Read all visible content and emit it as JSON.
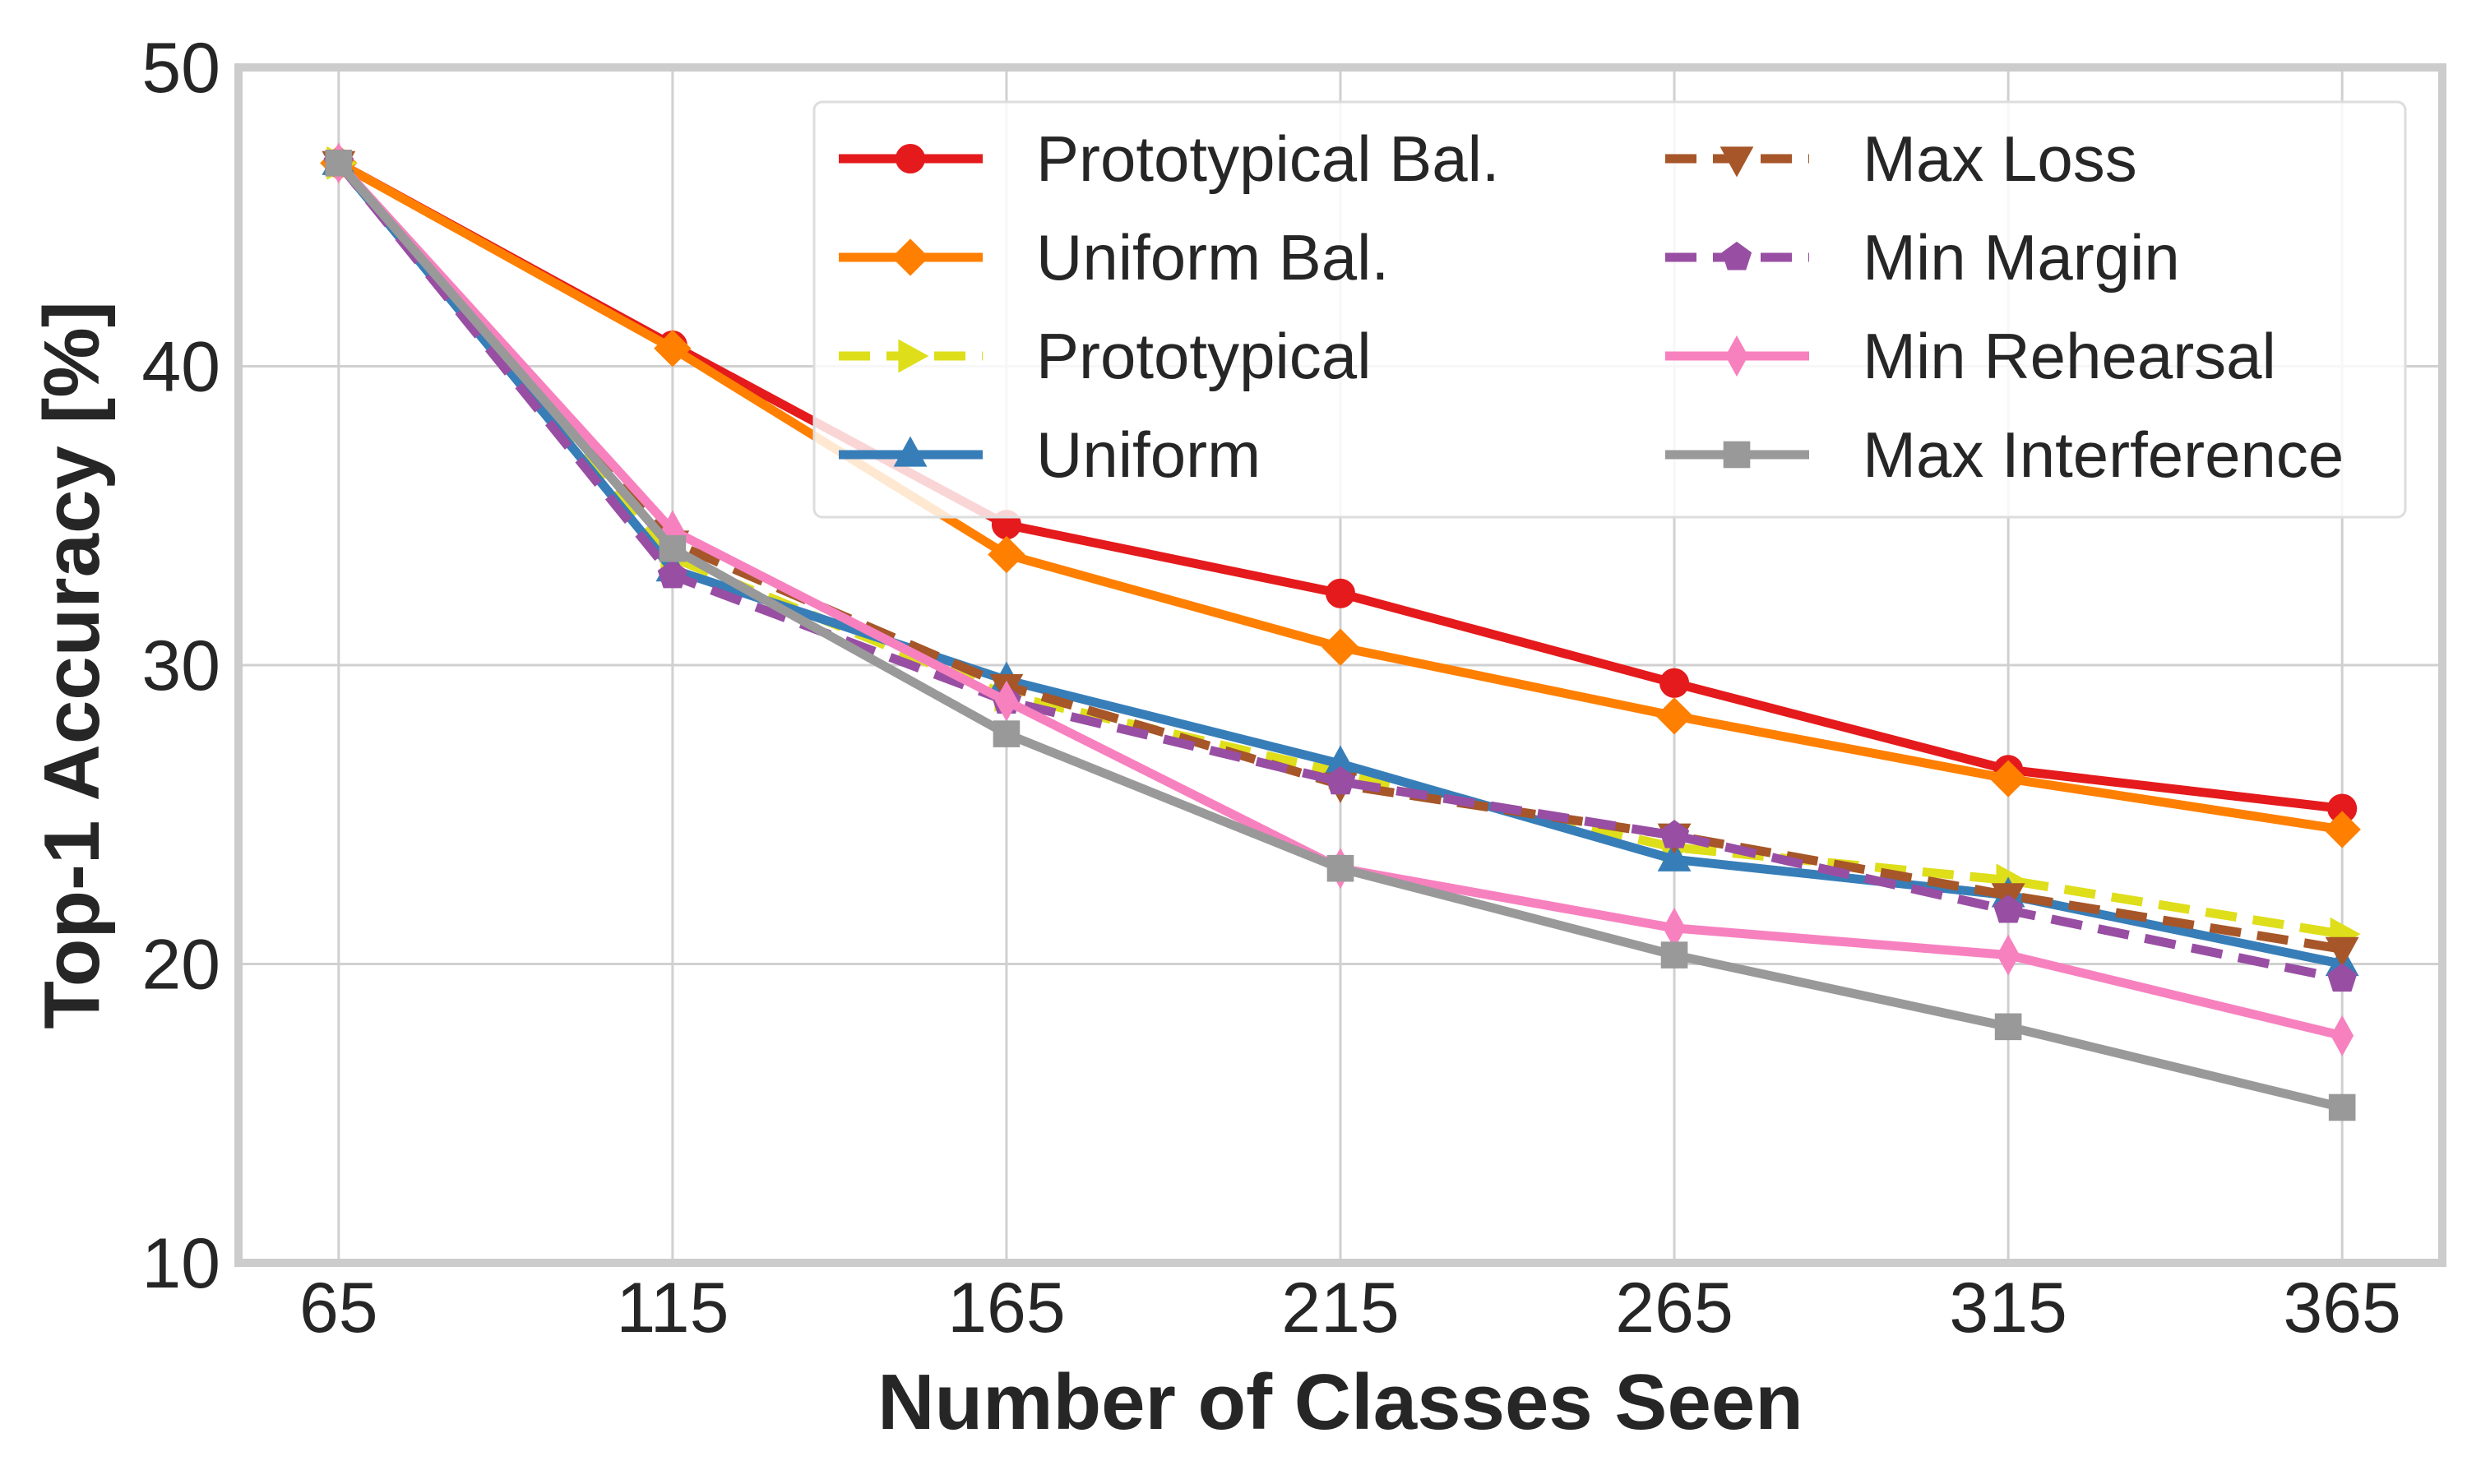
{
  "chart_data": {
    "type": "line",
    "title": "",
    "xlabel": "Number of Classes Seen",
    "ylabel": "Top-1 Accuracy [%]",
    "x": [
      65,
      115,
      165,
      215,
      265,
      315,
      365
    ],
    "x_tick_labels": [
      "65",
      "115",
      "165",
      "215",
      "265",
      "315",
      "365"
    ],
    "y_ticks": [
      10,
      20,
      30,
      40,
      50
    ],
    "y_tick_labels": [
      "10",
      "20",
      "30",
      "40",
      "50"
    ],
    "xlim": [
      50,
      380
    ],
    "ylim": [
      10,
      50
    ],
    "grid": true,
    "legend_position": "top-right",
    "series": [
      {
        "name": "Prototypical Bal.",
        "color": "#e41a1c",
        "marker": "circle",
        "dash": "solid",
        "values": [
          46.8,
          40.7,
          34.7,
          32.4,
          29.4,
          26.5,
          25.2
        ]
      },
      {
        "name": "Uniform Bal.",
        "color": "#ff7f00",
        "marker": "diamond",
        "dash": "solid",
        "values": [
          46.8,
          40.6,
          33.7,
          30.6,
          28.3,
          26.2,
          24.5
        ]
      },
      {
        "name": "Prototypical",
        "color": "#dede1b",
        "marker": "triangle-right",
        "dash": "dashed",
        "values": [
          46.8,
          33.6,
          29.0,
          26.4,
          23.9,
          22.8,
          21.0
        ]
      },
      {
        "name": "Uniform",
        "color": "#377eb8",
        "marker": "triangle-up",
        "dash": "solid",
        "values": [
          46.8,
          33.2,
          29.5,
          26.7,
          23.5,
          22.3,
          20.0
        ]
      },
      {
        "name": "Max Loss",
        "color": "#a65628",
        "marker": "triangle-down",
        "dash": "dashed",
        "values": [
          46.8,
          34.1,
          29.3,
          26.0,
          24.3,
          22.3,
          20.5
        ]
      },
      {
        "name": "Min Margin",
        "color": "#984ea3",
        "marker": "pentagon",
        "dash": "dashed",
        "values": [
          46.8,
          33.0,
          28.8,
          26.1,
          24.3,
          21.8,
          19.5
        ]
      },
      {
        "name": "Min Rehearsal",
        "color": "#f781bf",
        "marker": "thin-diamond",
        "dash": "solid",
        "values": [
          46.8,
          34.5,
          28.8,
          23.2,
          21.2,
          20.3,
          17.6
        ]
      },
      {
        "name": "Max Interference",
        "color": "#999999",
        "marker": "square",
        "dash": "solid",
        "values": [
          46.8,
          33.9,
          27.7,
          23.2,
          20.3,
          17.9,
          15.2
        ]
      }
    ]
  }
}
